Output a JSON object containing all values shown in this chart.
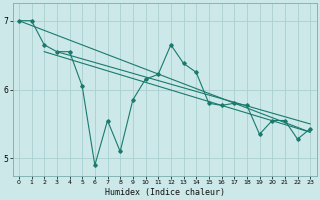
{
  "title": "",
  "xlabel": "Humidex (Indice chaleur)",
  "ylabel": "",
  "bg_color": "#cce8e8",
  "plot_bg_color": "#cce8e8",
  "grid_color": "#aacfcf",
  "line_color": "#1a7a6e",
  "xlim": [
    -0.5,
    23.5
  ],
  "ylim": [
    4.75,
    7.25
  ],
  "yticks": [
    5,
    6,
    7
  ],
  "xticks": [
    0,
    1,
    2,
    3,
    4,
    5,
    6,
    7,
    8,
    9,
    10,
    11,
    12,
    13,
    14,
    15,
    16,
    17,
    18,
    19,
    20,
    21,
    22,
    23
  ],
  "series": [
    [
      0,
      7.0
    ],
    [
      1,
      7.0
    ],
    [
      2,
      6.65
    ],
    [
      3,
      6.55
    ],
    [
      4,
      6.55
    ],
    [
      5,
      6.05
    ],
    [
      6,
      4.9
    ],
    [
      7,
      5.55
    ],
    [
      8,
      5.1
    ],
    [
      9,
      5.85
    ],
    [
      10,
      6.15
    ],
    [
      11,
      6.22
    ],
    [
      12,
      6.65
    ],
    [
      13,
      6.38
    ],
    [
      14,
      6.25
    ],
    [
      15,
      5.8
    ],
    [
      16,
      5.77
    ],
    [
      17,
      5.8
    ],
    [
      18,
      5.77
    ],
    [
      19,
      5.35
    ],
    [
      20,
      5.55
    ],
    [
      21,
      5.55
    ],
    [
      22,
      5.28
    ],
    [
      23,
      5.43
    ]
  ],
  "trend_lines": [
    [
      [
        0,
        7.0
      ],
      [
        23,
        5.38
      ]
    ],
    [
      [
        2,
        6.55
      ],
      [
        23,
        5.38
      ]
    ],
    [
      [
        3,
        6.55
      ],
      [
        23,
        5.5
      ]
    ]
  ]
}
